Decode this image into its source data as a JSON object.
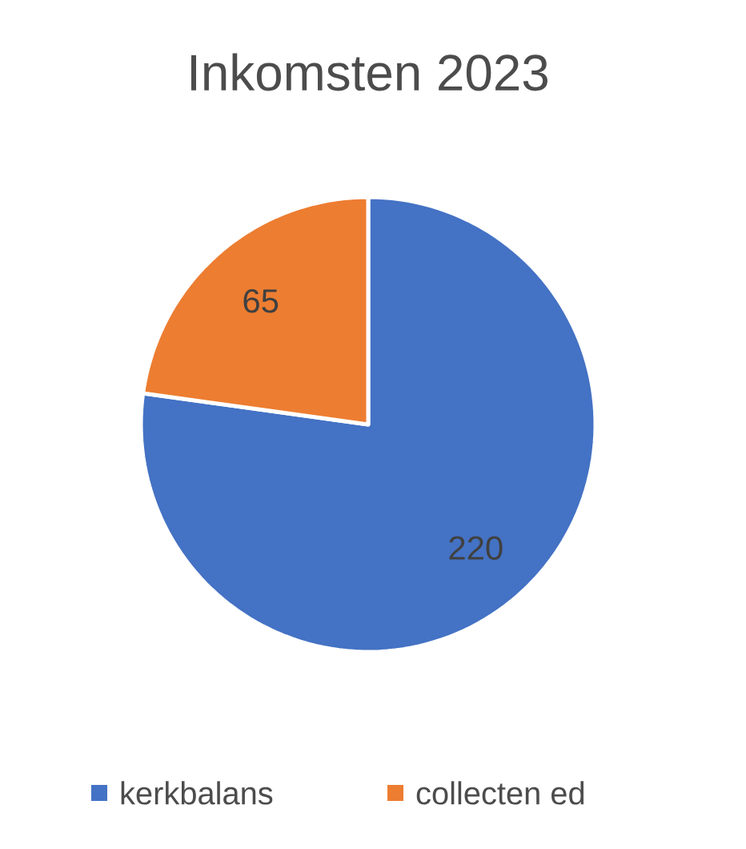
{
  "chart_data": {
    "type": "pie",
    "title": "Inkomsten 2023",
    "categories": [
      "kerkbalans",
      "collecten ed"
    ],
    "values": [
      220,
      65
    ],
    "colors": [
      "#4472c4",
      "#ed7d31"
    ],
    "data_labels": true,
    "legend": "bottom"
  }
}
